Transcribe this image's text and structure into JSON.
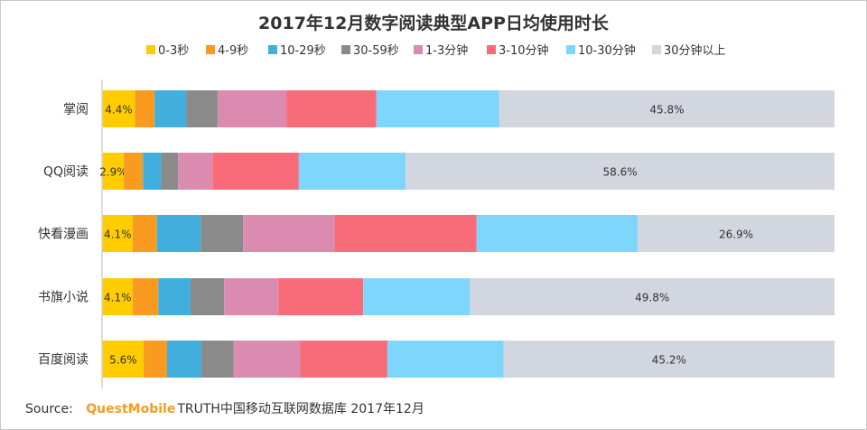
{
  "chart_data": {
    "type": "bar",
    "orientation": "horizontal",
    "stacked": true,
    "title": "2017年12月数字阅读典型APP日均使用时长",
    "categories": [
      "掌阅",
      "QQ阅读",
      "快看漫画",
      "书旗小说",
      "百度阅读"
    ],
    "series": [
      {
        "name": "0-3秒",
        "color": "#FFCC00",
        "values": [
          4.4,
          2.9,
          4.1,
          4.1,
          5.6
        ]
      },
      {
        "name": "4-9秒",
        "color": "#F89B20",
        "values": [
          2.7,
          2.6,
          3.3,
          3.5,
          3.2
        ]
      },
      {
        "name": "10-29秒",
        "color": "#42AEDD",
        "values": [
          4.3,
          2.5,
          6.0,
          4.4,
          4.7
        ]
      },
      {
        "name": "30-59秒",
        "color": "#8A8A8A",
        "values": [
          4.3,
          2.3,
          5.8,
          4.6,
          4.4
        ]
      },
      {
        "name": "1-3分钟",
        "color": "#DC8BB0",
        "values": [
          9.4,
          4.7,
          12.5,
          7.4,
          9.1
        ]
      },
      {
        "name": "3-10分钟",
        "color": "#F86C7A",
        "values": [
          12.3,
          11.8,
          19.4,
          11.6,
          11.9
        ]
      },
      {
        "name": "10-30分钟",
        "color": "#7FD6FC",
        "values": [
          16.8,
          14.6,
          22.0,
          14.6,
          15.9
        ]
      },
      {
        "name": "30分钟以上",
        "color": "#D2D6DF",
        "values": [
          45.8,
          58.6,
          26.9,
          49.8,
          45.2
        ]
      }
    ],
    "data_labels": {
      "0-3秒": [
        "4.4%",
        "2.9%",
        "4.1%",
        "4.1%",
        "5.6%"
      ],
      "30分钟以上": [
        "45.8%",
        "58.6%",
        "26.9%",
        "49.8%",
        "45.2%"
      ]
    },
    "xlim": [
      0,
      100
    ],
    "unit": "%",
    "grid": false,
    "legend": "top"
  },
  "source": {
    "label": "Source:",
    "brand": "QuestMobile",
    "text": "TRUTH中国移动互联网数据库 2017年12月"
  }
}
